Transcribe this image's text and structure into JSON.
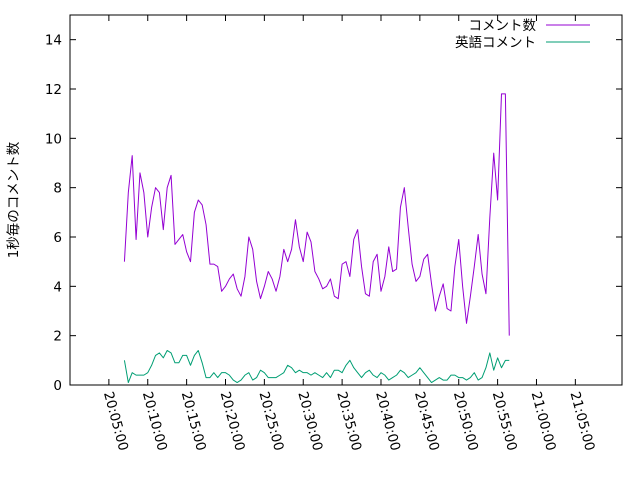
{
  "chart_data": {
    "type": "line",
    "xlabel": "",
    "ylabel": "1秒毎のコメント数",
    "ylim": [
      0,
      15
    ],
    "xlim_minutes": [
      -5,
      66
    ],
    "grid": false,
    "legend_position": "top-right",
    "x_ticks": [
      "20:05:00",
      "20:10:00",
      "20:15:00",
      "20:20:00",
      "20:25:00",
      "20:30:00",
      "20:35:00",
      "20:40:00",
      "20:45:00",
      "20:50:00",
      "20:55:00",
      "21:00:00",
      "21:05:00"
    ],
    "y_ticks": [
      "0",
      "2",
      "4",
      "6",
      "8",
      "10",
      "12",
      "14"
    ],
    "x_start": "20:05:00",
    "x_step_minutes": 0.5,
    "x_first_minute": 2.0,
    "series": [
      {
        "name": "コメント数",
        "color": "#9400d3",
        "values": [
          5.0,
          7.8,
          9.3,
          5.9,
          8.6,
          7.8,
          6.0,
          7.2,
          8.0,
          7.8,
          6.3,
          8.0,
          8.5,
          5.7,
          5.9,
          6.1,
          5.4,
          5.0,
          7.0,
          7.5,
          7.3,
          6.5,
          4.9,
          4.9,
          4.8,
          3.8,
          4.0,
          4.3,
          4.5,
          3.9,
          3.6,
          4.4,
          6.0,
          5.5,
          4.2,
          3.5,
          4.0,
          4.6,
          4.3,
          3.8,
          4.4,
          5.5,
          5.0,
          5.5,
          6.7,
          5.6,
          5.0,
          6.2,
          5.8,
          4.6,
          4.3,
          3.9,
          4.0,
          4.3,
          3.6,
          3.5,
          4.9,
          5.0,
          4.4,
          5.9,
          6.3,
          4.8,
          3.7,
          3.6,
          5.0,
          5.3,
          3.8,
          4.4,
          5.6,
          4.6,
          4.7,
          7.2,
          8.0,
          6.4,
          4.9,
          4.2,
          4.4,
          5.1,
          5.3,
          4.1,
          3.0,
          3.6,
          4.1,
          3.1,
          3.0,
          4.8,
          5.9,
          4.0,
          2.5,
          3.6,
          4.8,
          6.1,
          4.5,
          3.7,
          6.8,
          9.4,
          7.5,
          11.8,
          11.8,
          2.0
        ]
      },
      {
        "name": "英語コメント",
        "color": "#009e73",
        "values": [
          1.0,
          0.1,
          0.5,
          0.4,
          0.4,
          0.4,
          0.5,
          0.8,
          1.2,
          1.3,
          1.1,
          1.4,
          1.3,
          0.9,
          0.9,
          1.2,
          1.2,
          0.8,
          1.2,
          1.4,
          0.9,
          0.3,
          0.3,
          0.5,
          0.3,
          0.5,
          0.5,
          0.4,
          0.2,
          0.1,
          0.2,
          0.4,
          0.5,
          0.2,
          0.3,
          0.6,
          0.5,
          0.3,
          0.3,
          0.3,
          0.4,
          0.5,
          0.8,
          0.7,
          0.5,
          0.6,
          0.5,
          0.5,
          0.4,
          0.5,
          0.4,
          0.3,
          0.5,
          0.3,
          0.6,
          0.6,
          0.5,
          0.8,
          1.0,
          0.7,
          0.5,
          0.3,
          0.5,
          0.6,
          0.4,
          0.3,
          0.5,
          0.4,
          0.2,
          0.3,
          0.4,
          0.6,
          0.5,
          0.3,
          0.4,
          0.5,
          0.7,
          0.5,
          0.3,
          0.1,
          0.2,
          0.3,
          0.2,
          0.2,
          0.4,
          0.4,
          0.3,
          0.3,
          0.2,
          0.3,
          0.5,
          0.2,
          0.3,
          0.7,
          1.3,
          0.6,
          1.1,
          0.7,
          1.0,
          1.0
        ]
      }
    ]
  }
}
